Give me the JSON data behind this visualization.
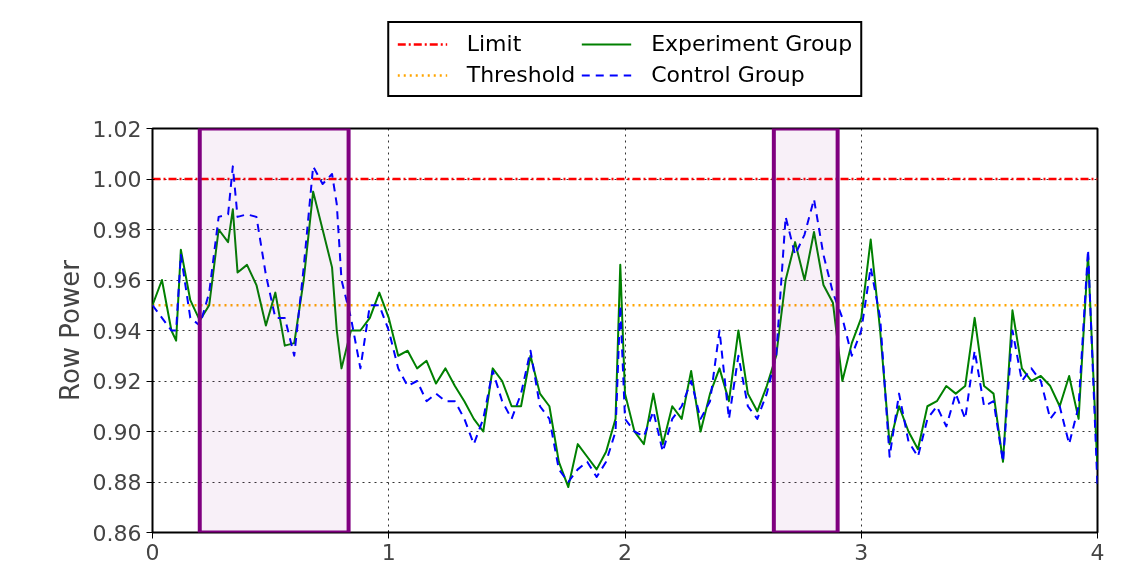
{
  "chart_data": {
    "type": "line",
    "ylabel": "Row Power",
    "x": [
      0,
      0.04,
      0.08,
      0.1,
      0.12,
      0.16,
      0.2,
      0.24,
      0.28,
      0.32,
      0.34,
      0.36,
      0.4,
      0.44,
      0.48,
      0.52,
      0.56,
      0.6,
      0.64,
      0.68,
      0.72,
      0.76,
      0.78,
      0.8,
      0.84,
      0.88,
      0.92,
      0.96,
      1.0,
      1.04,
      1.08,
      1.12,
      1.16,
      1.2,
      1.24,
      1.28,
      1.32,
      1.36,
      1.4,
      1.44,
      1.48,
      1.52,
      1.56,
      1.6,
      1.64,
      1.68,
      1.72,
      1.76,
      1.8,
      1.84,
      1.88,
      1.92,
      1.96,
      1.98,
      2.0,
      2.04,
      2.08,
      2.12,
      2.16,
      2.2,
      2.24,
      2.28,
      2.32,
      2.36,
      2.4,
      2.44,
      2.48,
      2.52,
      2.56,
      2.6,
      2.64,
      2.68,
      2.72,
      2.76,
      2.8,
      2.84,
      2.88,
      2.92,
      2.96,
      3.0,
      3.04,
      3.08,
      3.12,
      3.16,
      3.2,
      3.24,
      3.28,
      3.32,
      3.36,
      3.4,
      3.44,
      3.48,
      3.52,
      3.56,
      3.6,
      3.64,
      3.68,
      3.72,
      3.76,
      3.8,
      3.84,
      3.88,
      3.92,
      3.96,
      4.0
    ],
    "series": [
      {
        "name": "Experiment Group",
        "color": "#008000",
        "line_style": "solid",
        "values": [
          0.95,
          0.96,
          0.94,
          0.936,
          0.972,
          0.952,
          0.944,
          0.95,
          0.98,
          0.975,
          0.988,
          0.963,
          0.966,
          0.958,
          0.942,
          0.955,
          0.934,
          0.935,
          0.96,
          0.995,
          0.98,
          0.965,
          0.94,
          0.925,
          0.94,
          0.94,
          0.945,
          0.955,
          0.945,
          0.93,
          0.932,
          0.925,
          0.928,
          0.919,
          0.925,
          0.918,
          0.912,
          0.905,
          0.9,
          0.925,
          0.92,
          0.91,
          0.91,
          0.93,
          0.915,
          0.91,
          0.888,
          0.878,
          0.895,
          0.89,
          0.885,
          0.892,
          0.905,
          0.966,
          0.915,
          0.9,
          0.895,
          0.915,
          0.895,
          0.91,
          0.905,
          0.924,
          0.9,
          0.915,
          0.925,
          0.912,
          0.94,
          0.915,
          0.908,
          0.918,
          0.93,
          0.96,
          0.975,
          0.96,
          0.979,
          0.958,
          0.951,
          0.92,
          0.935,
          0.945,
          0.976,
          0.94,
          0.895,
          0.91,
          0.9,
          0.893,
          0.91,
          0.912,
          0.918,
          0.915,
          0.918,
          0.945,
          0.918,
          0.915,
          0.888,
          0.948,
          0.925,
          0.92,
          0.922,
          0.918,
          0.91,
          0.922,
          0.905,
          0.97,
          0.885
        ]
      },
      {
        "name": "Control Group",
        "color": "#0000ff",
        "line_style": "dashed",
        "values": [
          0.95,
          0.945,
          0.94,
          0.94,
          0.97,
          0.945,
          0.942,
          0.955,
          0.985,
          0.986,
          1.005,
          0.985,
          0.986,
          0.985,
          0.962,
          0.945,
          0.945,
          0.93,
          0.965,
          1.005,
          0.998,
          1.002,
          0.99,
          0.96,
          0.945,
          0.925,
          0.95,
          0.95,
          0.94,
          0.925,
          0.918,
          0.92,
          0.912,
          0.915,
          0.912,
          0.912,
          0.905,
          0.895,
          0.905,
          0.924,
          0.912,
          0.905,
          0.915,
          0.932,
          0.91,
          0.905,
          0.885,
          0.88,
          0.885,
          0.888,
          0.882,
          0.888,
          0.9,
          0.95,
          0.905,
          0.9,
          0.898,
          0.908,
          0.892,
          0.905,
          0.91,
          0.92,
          0.905,
          0.912,
          0.94,
          0.905,
          0.93,
          0.91,
          0.905,
          0.915,
          0.93,
          0.985,
          0.97,
          0.978,
          0.992,
          0.97,
          0.955,
          0.945,
          0.93,
          0.94,
          0.965,
          0.945,
          0.89,
          0.915,
          0.896,
          0.89,
          0.905,
          0.91,
          0.902,
          0.915,
          0.905,
          0.932,
          0.91,
          0.912,
          0.888,
          0.94,
          0.92,
          0.925,
          0.92,
          0.905,
          0.91,
          0.895,
          0.91,
          0.972,
          0.878
        ]
      }
    ],
    "ref_lines": [
      {
        "axis": "y",
        "value": 1.0,
        "label": "Limit",
        "color": "#ff0000",
        "line_style": "dashdot"
      },
      {
        "axis": "y",
        "value": 0.95,
        "label": "Threshold",
        "color": "#ffa500",
        "line_style": "dotted"
      }
    ],
    "bands": [
      {
        "axis": "x",
        "from": 0.2,
        "to": 0.83,
        "color": "#800080"
      },
      {
        "axis": "x",
        "from": 2.63,
        "to": 2.9,
        "color": "#800080"
      }
    ],
    "xlim": [
      0,
      4
    ],
    "xticks": [
      0,
      1,
      2,
      3,
      4
    ],
    "ylim": [
      0.86,
      1.02
    ],
    "yticks": [
      {
        "value": 0.86,
        "label": "0.86"
      },
      {
        "value": 0.88,
        "label": "0.88"
      },
      {
        "value": 0.9,
        "label": "0.90"
      },
      {
        "value": 0.92,
        "label": "0.92"
      },
      {
        "value": 0.94,
        "label": "0.94"
      },
      {
        "value": 0.96,
        "label": "0.96"
      },
      {
        "value": 0.98,
        "label": "0.98"
      },
      {
        "value": 1.0,
        "label": "1.00"
      },
      {
        "value": 1.02,
        "label": "1.02"
      }
    ],
    "grid": true,
    "legend": "top"
  }
}
